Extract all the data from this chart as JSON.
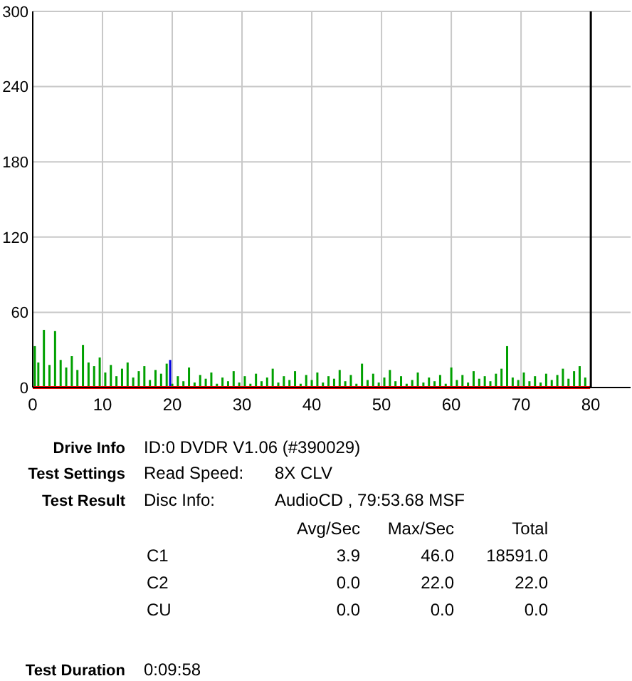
{
  "chart_data": {
    "type": "bar",
    "xlim": [
      0,
      85.7
    ],
    "ylim": [
      0,
      300
    ],
    "xticks": [
      0,
      10,
      20,
      30,
      40,
      50,
      60,
      70,
      80
    ],
    "yticks": [
      0,
      60,
      120,
      180,
      240,
      300
    ],
    "grid": true,
    "series": [
      {
        "color": "#00a000",
        "x": [
          0.3,
          0.8,
          1.6,
          2.4,
          3.2,
          4,
          4.8,
          5.6,
          6.4,
          7.2,
          8,
          8.8,
          9.6,
          10.4,
          11.2,
          12,
          12.8,
          13.6,
          14.4,
          15.2,
          16,
          16.8,
          17.6,
          18.4,
          19.2,
          20,
          20.8,
          21.6,
          22.4,
          23.2,
          24,
          24.8,
          25.6,
          26.4,
          27.2,
          28,
          28.8,
          29.6,
          30.4,
          31.2,
          32,
          32.8,
          33.6,
          34.4,
          35.2,
          36,
          36.8,
          37.6,
          38.4,
          39.2,
          40,
          40.8,
          41.6,
          42.4,
          43.2,
          44,
          44.8,
          45.6,
          46.4,
          47.2,
          48,
          48.8,
          49.6,
          50.4,
          51.2,
          52,
          52.8,
          53.6,
          54.4,
          55.2,
          56,
          56.8,
          57.6,
          58.4,
          59.2,
          60,
          60.8,
          61.6,
          62.4,
          63.2,
          64,
          64.8,
          65.6,
          66.4,
          67.2,
          68,
          68.8,
          69.6,
          70.4,
          71.2,
          72,
          72.8,
          73.6,
          74.4,
          75.2,
          76,
          76.8,
          77.6,
          78.4,
          79.2
        ],
        "values": [
          33,
          20,
          46,
          18,
          45,
          22,
          16,
          25,
          14,
          34,
          20,
          17,
          24,
          12,
          18,
          9,
          15,
          20,
          8,
          13,
          17,
          6,
          14,
          11,
          19,
          3,
          9,
          5,
          16,
          4,
          10,
          7,
          12,
          3,
          8,
          5,
          13,
          4,
          9,
          3,
          11,
          5,
          8,
          15,
          4,
          9,
          6,
          13,
          3,
          10,
          6,
          12,
          4,
          9,
          7,
          14,
          5,
          10,
          3,
          19,
          6,
          11,
          4,
          8,
          14,
          5,
          9,
          3,
          6,
          12,
          4,
          8,
          5,
          10,
          3,
          16,
          6,
          10,
          4,
          13,
          7,
          9,
          5,
          11,
          15,
          33,
          8,
          6,
          12,
          5,
          9,
          4,
          11,
          6,
          10,
          15,
          7,
          13,
          17,
          8
        ]
      },
      {
        "color": "#0000e0",
        "x": [
          19.7
        ],
        "values": [
          22
        ]
      },
      {
        "type": "line",
        "color": "#ff0000",
        "x": [
          0,
          79.9
        ],
        "values": [
          0,
          0
        ]
      }
    ],
    "ref_lines": [
      {
        "axis": "x",
        "value": 80,
        "color": "#000000"
      }
    ],
    "annotations": [
      "Drive Info",
      "ID:0 DVDR V1.06 (#390029)",
      "Test Settings",
      "Read Speed:",
      "8X CLV",
      "Test Result",
      "Disc Info:",
      "AudioCD , 79:53.68 MSF",
      "Avg/Sec",
      "Max/Sec",
      "Total",
      "C1",
      "3.9",
      "46.0",
      "18591.0",
      "C2",
      "0.0",
      "22.0",
      "22.0",
      "CU",
      "0.0",
      "0.0",
      "0.0",
      "Test Duration",
      "0:09:58"
    ]
  }
}
